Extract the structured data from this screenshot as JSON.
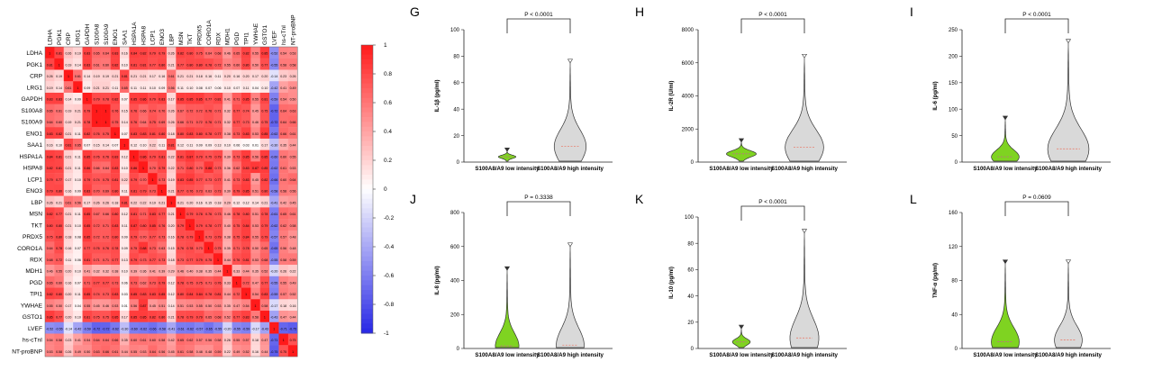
{
  "heatmap": {
    "labels": [
      "LDHA",
      "PGK1",
      "CRP",
      "LRG1",
      "GAPDH",
      "S100A8",
      "S100A9",
      "ENO1",
      "SAA1",
      "HSPA1A",
      "HSPA8",
      "LCP1",
      "ENO3",
      "LBP",
      "MSN",
      "TKT",
      "PRDX5",
      "CORO1A",
      "RDX",
      "MDH1",
      "PGD",
      "TPI1",
      "YWHAE",
      "GSTO1",
      "LVEF",
      "hs-cTnI",
      "NT-proBNP"
    ],
    "colorbar_ticks": [
      "1",
      "0.8",
      "0.6",
      "0.4",
      "0.2",
      "0",
      "-0.2",
      "-0.4",
      "-0.6",
      "-0.8",
      "-1"
    ]
  },
  "chart_data": [
    {
      "type": "heatmap",
      "panel": "",
      "rows": [
        "LDHA",
        "PGK1",
        "CRP",
        "LRG1",
        "GAPDH",
        "S100A8",
        "S100A9",
        "ENO1",
        "SAA1",
        "HSPA1A",
        "HSPA8",
        "LCP1",
        "ENO3",
        "LBP",
        "MSN",
        "TKT",
        "PRDX5",
        "CORO1A",
        "RDX",
        "MDH1",
        "PGD",
        "TPI1",
        "YWHAE",
        "GSTO1",
        "LVEF",
        "hs-cTnI",
        "NT-proBNP"
      ],
      "columns": [
        "LDHA",
        "PGK1",
        "CRP",
        "LRG1",
        "GAPDH",
        "S100A8",
        "S100A9",
        "ENO1",
        "SAA1",
        "HSPA1A",
        "HSPA8",
        "LCP1",
        "ENO3",
        "LBP",
        "MSN",
        "TKT",
        "PRDX5",
        "CORO1A",
        "RDX",
        "MDH1",
        "PGD",
        "TPI1",
        "YWHAE",
        "GSTO1",
        "LVEF",
        "hs-cTnI",
        "NT-proBNP"
      ],
      "values": [
        [
          1,
          0.81,
          0.26,
          0.19,
          0.83,
          0.65,
          0.64,
          0.83,
          0.16,
          0.84,
          0.82,
          0.79,
          0.79,
          0.26,
          0.82,
          0.8,
          0.75,
          0.64,
          0.68,
          0.46,
          0.65,
          0.82,
          0.55,
          0.85,
          -0.52,
          0.54,
          0.53
        ],
        [
          0.81,
          1,
          0.19,
          0.14,
          0.83,
          0.61,
          0.6,
          0.82,
          0.1,
          0.81,
          0.81,
          0.77,
          0.8,
          0.21,
          0.77,
          0.8,
          0.8,
          0.78,
          0.72,
          0.55,
          0.6,
          0.8,
          0.5,
          0.77,
          -0.55,
          0.58,
          0.58
        ],
        [
          0.26,
          0.19,
          1,
          0.61,
          0.14,
          0.19,
          0.19,
          0.21,
          0.81,
          0.21,
          0.21,
          0.17,
          0.16,
          0.61,
          0.21,
          0.21,
          0.18,
          0.16,
          0.11,
          0.2,
          0.16,
          0.2,
          0.17,
          0.2,
          -0.14,
          0.23,
          0.26
        ],
        [
          0.19,
          0.14,
          0.61,
          1,
          0.09,
          0.21,
          0.21,
          0.11,
          0.65,
          0.11,
          0.11,
          0.1,
          0.09,
          0.56,
          0.11,
          0.1,
          0.08,
          0.07,
          0.06,
          0.1,
          0.07,
          0.11,
          0.04,
          0.1,
          -0.42,
          0.41,
          0.49
        ],
        [
          0.83,
          0.83,
          0.14,
          0.09,
          1,
          0.79,
          0.78,
          0.82,
          0.07,
          0.85,
          0.86,
          0.79,
          0.83,
          0.17,
          0.85,
          0.85,
          0.85,
          0.77,
          0.81,
          0.41,
          0.71,
          0.85,
          0.55,
          0.81,
          -0.59,
          0.54,
          0.5
        ],
        [
          0.65,
          0.61,
          0.19,
          0.21,
          0.79,
          1,
          1,
          0.76,
          0.15,
          0.76,
          0.66,
          0.74,
          0.7,
          0.26,
          0.67,
          0.72,
          0.72,
          0.76,
          0.71,
          0.32,
          0.77,
          0.74,
          0.45,
          0.75,
          -0.72,
          0.64,
          0.63
        ],
        [
          0.64,
          0.6,
          0.19,
          0.21,
          0.78,
          1,
          1,
          0.75,
          0.14,
          0.76,
          0.64,
          0.75,
          0.69,
          0.26,
          0.66,
          0.71,
          0.72,
          0.76,
          0.71,
          0.32,
          0.77,
          0.73,
          0.46,
          0.75,
          -0.72,
          0.64,
          0.66
        ],
        [
          0.83,
          0.82,
          0.21,
          0.11,
          0.82,
          0.76,
          0.75,
          1,
          0.07,
          0.83,
          0.83,
          0.81,
          0.8,
          0.18,
          0.8,
          0.83,
          0.8,
          0.78,
          0.77,
          0.38,
          0.73,
          0.83,
          0.53,
          0.85,
          -0.62,
          0.66,
          0.61
        ],
        [
          0.16,
          0.1,
          0.81,
          0.65,
          0.07,
          0.15,
          0.14,
          0.07,
          1,
          0.12,
          0.1,
          0.22,
          0.11,
          0.81,
          0.12,
          0.11,
          0.09,
          0.09,
          0.13,
          0.1,
          0.06,
          0.03,
          0.01,
          0.17,
          -0.3,
          0.35,
          0.44
        ],
        [
          0.84,
          0.81,
          0.21,
          0.11,
          0.85,
          0.76,
          0.76,
          0.83,
          0.12,
          1,
          0.86,
          0.79,
          0.81,
          0.22,
          0.81,
          0.87,
          0.79,
          0.75,
          0.79,
          0.39,
          0.73,
          0.85,
          0.56,
          0.85,
          -0.6,
          0.6,
          0.55
        ],
        [
          0.82,
          0.81,
          0.21,
          0.11,
          0.86,
          0.66,
          0.64,
          0.83,
          0.1,
          0.86,
          1,
          0.7,
          0.79,
          0.22,
          0.71,
          0.8,
          0.7,
          0.88,
          0.73,
          0.36,
          0.62,
          0.83,
          0.87,
          0.85,
          -0.62,
          0.61,
          0.53
        ],
        [
          0.79,
          0.77,
          0.17,
          0.1,
          0.79,
          0.74,
          0.75,
          0.81,
          0.22,
          0.79,
          0.7,
          1,
          0.73,
          0.19,
          0.83,
          0.85,
          0.77,
          0.73,
          0.77,
          0.41,
          0.73,
          0.83,
          0.45,
          0.82,
          -0.66,
          0.6,
          0.64
        ],
        [
          0.79,
          0.8,
          0.16,
          0.09,
          0.83,
          0.7,
          0.69,
          0.8,
          0.11,
          0.81,
          0.79,
          0.73,
          1,
          0.21,
          0.77,
          0.76,
          0.73,
          0.63,
          0.73,
          0.39,
          0.79,
          0.85,
          0.51,
          0.8,
          -0.58,
          0.58,
          0.56
        ],
        [
          0.26,
          0.21,
          0.61,
          0.56,
          0.17,
          0.26,
          0.26,
          0.18,
          0.81,
          0.22,
          0.22,
          0.19,
          0.21,
          1,
          0.21,
          0.2,
          0.16,
          0.15,
          0.18,
          0.29,
          0.12,
          0.12,
          0.14,
          0.21,
          -0.41,
          0.42,
          0.45
        ],
        [
          0.82,
          0.77,
          0.21,
          0.11,
          0.85,
          0.67,
          0.66,
          0.8,
          0.12,
          0.81,
          0.71,
          0.83,
          0.77,
          0.21,
          1,
          0.79,
          0.78,
          0.76,
          0.73,
          0.46,
          0.78,
          0.8,
          0.51,
          0.78,
          -0.61,
          0.65,
          0.61
        ],
        [
          0.8,
          0.8,
          0.21,
          0.1,
          0.85,
          0.72,
          0.71,
          0.83,
          0.11,
          0.87,
          0.8,
          0.85,
          0.76,
          0.2,
          0.79,
          1,
          0.79,
          0.78,
          0.77,
          0.4,
          0.75,
          0.84,
          0.53,
          0.79,
          -0.62,
          0.62,
          0.58
        ],
        [
          0.75,
          0.8,
          0.18,
          0.08,
          0.85,
          0.72,
          0.72,
          0.8,
          0.09,
          0.79,
          0.7,
          0.77,
          0.73,
          0.16,
          0.78,
          0.79,
          1,
          0.73,
          0.79,
          0.38,
          0.75,
          0.84,
          0.55,
          0.79,
          -0.57,
          0.57,
          0.48
        ],
        [
          0.64,
          0.78,
          0.16,
          0.07,
          0.77,
          0.76,
          0.76,
          0.78,
          0.09,
          0.75,
          0.88,
          0.73,
          0.63,
          0.15,
          0.76,
          0.78,
          0.73,
          1,
          0.75,
          0.35,
          0.71,
          0.78,
          0.5,
          0.65,
          -0.65,
          0.56,
          0.48
        ],
        [
          0.68,
          0.72,
          0.11,
          0.06,
          0.81,
          0.71,
          0.71,
          0.77,
          0.13,
          0.79,
          0.73,
          0.77,
          0.73,
          0.18,
          0.73,
          0.77,
          0.79,
          0.75,
          1,
          0.44,
          0.76,
          0.81,
          0.53,
          0.68,
          -0.55,
          0.58,
          0.59
        ],
        [
          0.46,
          0.55,
          0.2,
          0.1,
          0.41,
          0.32,
          0.32,
          0.38,
          0.1,
          0.39,
          0.36,
          0.41,
          0.39,
          0.29,
          0.46,
          0.4,
          0.38,
          0.35,
          0.44,
          1,
          0.33,
          0.44,
          0.35,
          0.52,
          -0.2,
          0.26,
          0.22
        ],
        [
          0.65,
          0.6,
          0.16,
          0.07,
          0.71,
          0.77,
          0.77,
          0.73,
          0.06,
          0.73,
          0.62,
          0.73,
          0.79,
          0.12,
          0.78,
          0.75,
          0.75,
          0.71,
          0.76,
          0.33,
          1,
          0.72,
          0.47,
          0.77,
          -0.55,
          0.55,
          0.49
        ],
        [
          0.82,
          0.8,
          0.2,
          0.11,
          0.85,
          0.74,
          0.73,
          0.83,
          0.03,
          0.85,
          0.83,
          0.83,
          0.85,
          0.12,
          0.8,
          0.84,
          0.84,
          0.78,
          0.81,
          0.44,
          0.72,
          1,
          0.54,
          0.83,
          -0.59,
          0.57,
          0.52
        ],
        [
          0.55,
          0.5,
          0.17,
          0.04,
          0.55,
          0.45,
          0.46,
          0.53,
          0.01,
          0.56,
          0.87,
          0.45,
          0.51,
          0.14,
          0.51,
          0.53,
          0.55,
          0.5,
          0.53,
          0.35,
          0.47,
          0.54,
          1,
          0.58,
          -0.17,
          0.18,
          0.16
        ],
        [
          0.85,
          0.77,
          0.2,
          0.1,
          0.81,
          0.75,
          0.75,
          0.85,
          0.17,
          0.85,
          0.85,
          0.82,
          0.8,
          0.21,
          0.78,
          0.79,
          0.79,
          0.65,
          0.68,
          0.52,
          0.77,
          0.83,
          0.58,
          1,
          -0.43,
          0.47,
          0.44
        ],
        [
          -0.52,
          -0.55,
          -0.14,
          -0.42,
          -0.59,
          -0.72,
          -0.72,
          -0.62,
          -0.3,
          -0.6,
          -0.62,
          -0.66,
          -0.58,
          -0.41,
          -0.61,
          -0.62,
          -0.57,
          -0.65,
          -0.55,
          -0.2,
          -0.55,
          -0.59,
          -0.17,
          -0.43,
          1,
          -0.71,
          -0.75
        ],
        [
          0.54,
          0.58,
          0.23,
          0.41,
          0.54,
          0.64,
          0.64,
          0.66,
          0.35,
          0.6,
          0.61,
          0.6,
          0.58,
          0.42,
          0.65,
          0.62,
          0.57,
          0.56,
          0.58,
          0.26,
          0.55,
          0.57,
          0.18,
          0.47,
          -0.71,
          1,
          0.75
        ],
        [
          0.53,
          0.58,
          0.26,
          0.49,
          0.5,
          0.63,
          0.66,
          0.61,
          0.44,
          0.55,
          0.53,
          0.64,
          0.56,
          0.45,
          0.61,
          0.58,
          0.48,
          0.48,
          0.59,
          0.22,
          0.49,
          0.52,
          0.16,
          0.44,
          -0.75,
          0.75,
          1
        ]
      ],
      "color_scale": {
        "min": -1,
        "max": 1,
        "low": "#2727e6",
        "mid": "#ffffff",
        "high": "#ff1a1a"
      },
      "colorbar_ticks": [
        1,
        0.8,
        0.6,
        0.4,
        0.2,
        0,
        -0.2,
        -0.4,
        -0.6,
        -0.8,
        -1
      ]
    },
    {
      "type": "violin",
      "panel": "G",
      "ylabel": "IL-1β (pg/ml)",
      "ylim": [
        0,
        100
      ],
      "yticks": [
        "0",
        "20",
        "40",
        "60",
        "80",
        "100"
      ],
      "categories": [
        "S100A8/A9 low intensity",
        "S100A8/A9 high intensity"
      ],
      "annotation": "P < 0.0001",
      "max": [
        8,
        75
      ],
      "median": [
        4,
        12
      ],
      "spread": [
        0.12,
        0.38
      ]
    },
    {
      "type": "violin",
      "panel": "H",
      "ylabel": "IL-2R (U/ml)",
      "ylim": [
        0,
        8000
      ],
      "yticks": [
        "0",
        "2000",
        "4000",
        "6000",
        "8000"
      ],
      "categories": [
        "S100A8/A9 low intensity",
        "S100A8/A9 high intensity"
      ],
      "annotation": "P < 0.0001",
      "max": [
        1200,
        6300
      ],
      "median": [
        500,
        900
      ],
      "spread": [
        0.35,
        0.5
      ]
    },
    {
      "type": "violin",
      "panel": "I",
      "ylabel": "IL-6 (pg/ml)",
      "ylim": [
        0,
        250
      ],
      "yticks": [
        "0",
        "50",
        "100",
        "150",
        "200",
        "250"
      ],
      "categories": [
        "S100A8/A9 low intensity",
        "S100A8/A9 high intensity"
      ],
      "annotation": "P < 0.0001",
      "max": [
        80,
        225
      ],
      "median": [
        10,
        25
      ],
      "spread": [
        0.3,
        0.55
      ]
    },
    {
      "type": "violin",
      "panel": "J",
      "ylabel": "IL-8 (pg/ml)",
      "ylim": [
        0,
        800
      ],
      "yticks": [
        "0",
        "200",
        "400",
        "600",
        "800"
      ],
      "categories": [
        "S100A8/A9 low intensity",
        "S100A8/A9 high intensity"
      ],
      "annotation": "P = 0.3338",
      "max": [
        460,
        600
      ],
      "median": [
        15,
        20
      ],
      "spread": [
        0.22,
        0.3
      ]
    },
    {
      "type": "violin",
      "panel": "K",
      "ylabel": "IL-10 (pg/ml)",
      "ylim": [
        0,
        100
      ],
      "yticks": [
        "0",
        "20",
        "40",
        "60",
        "80",
        "100"
      ],
      "categories": [
        "S100A8/A9 low intensity",
        "S100A8/A9 high intensity"
      ],
      "annotation": "P < 0.0001",
      "max": [
        15,
        88
      ],
      "median": [
        5,
        8
      ],
      "spread": [
        0.12,
        0.32
      ]
    },
    {
      "type": "violin",
      "panel": "L",
      "ylabel": "TNF-α (pg/ml)",
      "ylim": [
        0,
        160
      ],
      "yticks": [
        "0",
        "40",
        "80",
        "120",
        "160"
      ],
      "categories": [
        "S100A8/A9 low intensity",
        "S100A8/A9 high intensity"
      ],
      "annotation": "P = 0.0609",
      "max": [
        100,
        100
      ],
      "median": [
        8,
        10
      ],
      "spread": [
        0.3,
        0.3
      ]
    }
  ]
}
